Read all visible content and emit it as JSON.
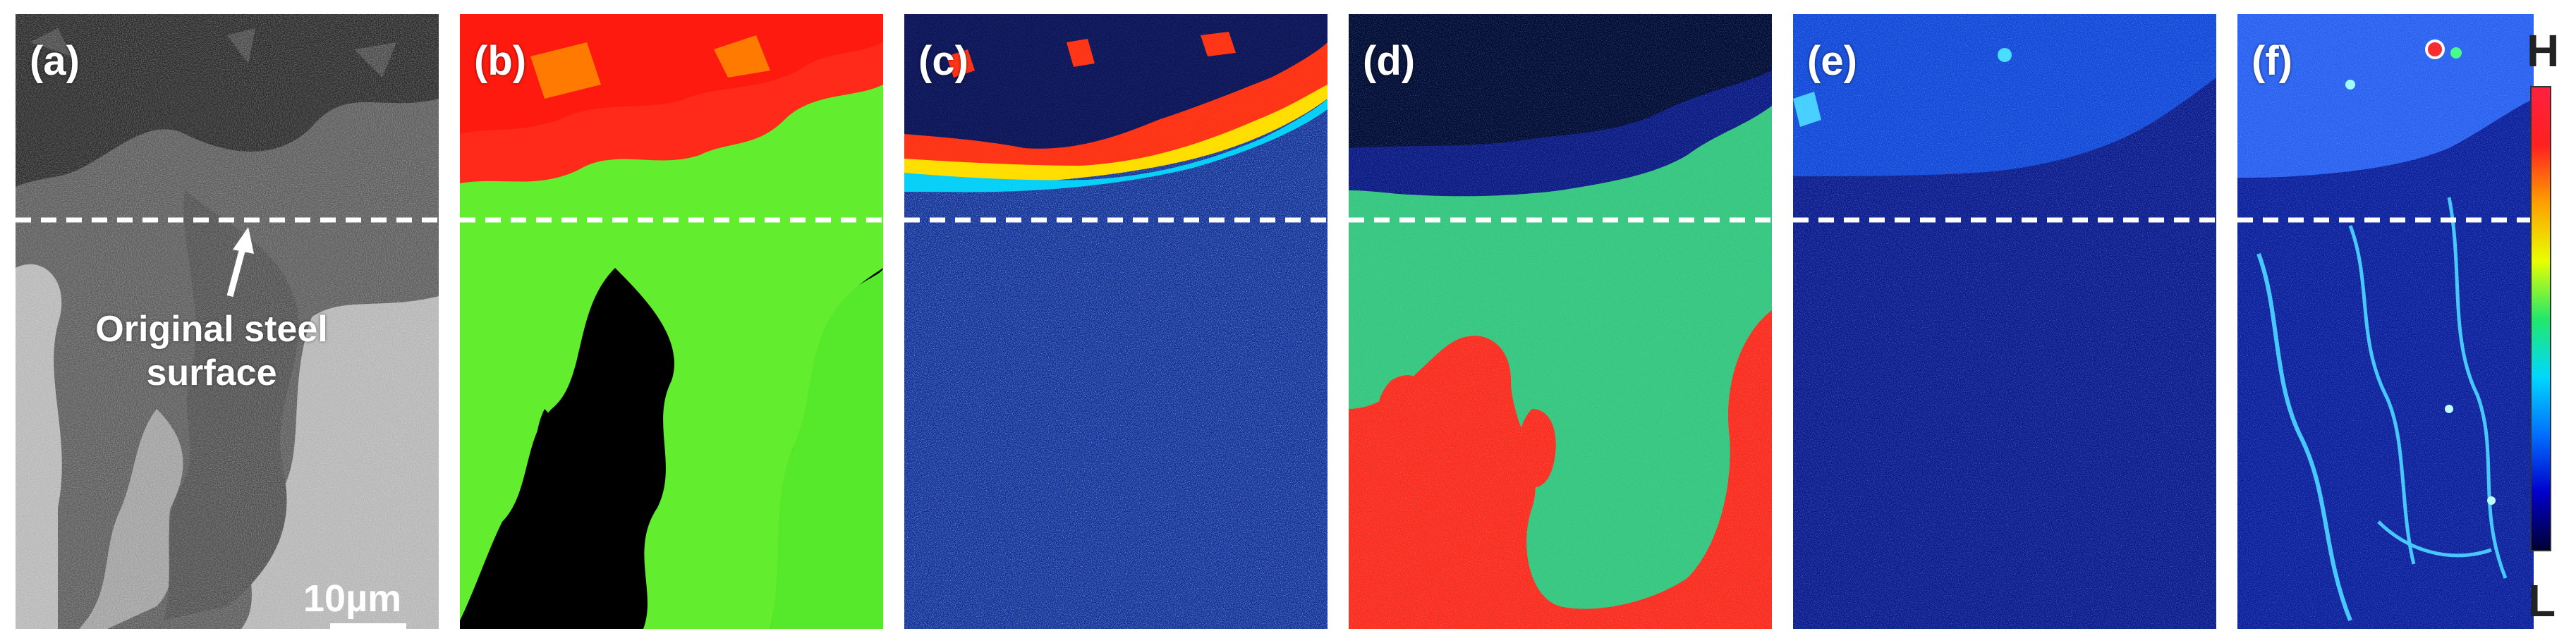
{
  "panels": [
    {
      "label": "(a)"
    },
    {
      "label": "(b)"
    },
    {
      "label": "(c)"
    },
    {
      "label": "(d)"
    },
    {
      "label": "(e)"
    },
    {
      "label": "(f)"
    }
  ],
  "annotation": {
    "line1": "Original steel",
    "line2": "surface"
  },
  "scalebar": {
    "label": "10µm"
  },
  "colorbar": {
    "high_label": "H",
    "low_label": "L",
    "colors": [
      "#000033",
      "#0000cc",
      "#0070ff",
      "#00d8ff",
      "#22e86a",
      "#e8ff00",
      "#ffa000",
      "#ff2020",
      "#ff2040"
    ]
  }
}
